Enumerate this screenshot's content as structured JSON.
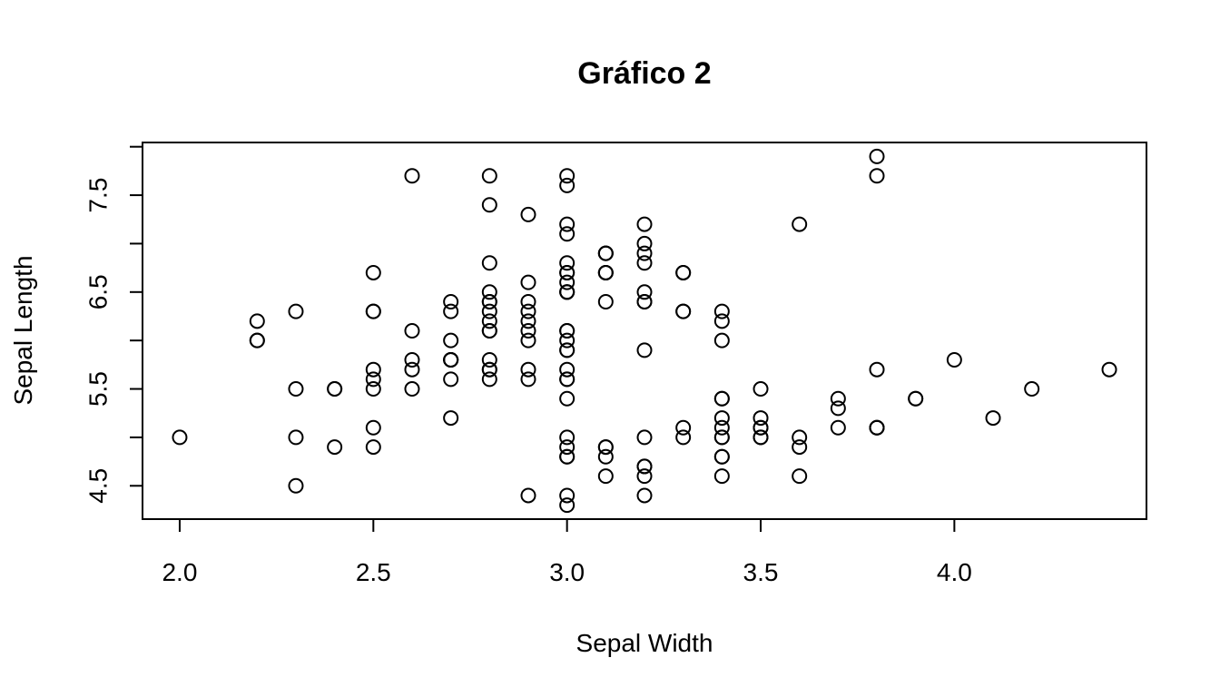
{
  "chart_data": {
    "type": "scatter",
    "title": "Gráfico 2",
    "x_label": "Sepal Width",
    "y_label": "Sepal Length",
    "x": [
      3.5,
      3.0,
      3.2,
      3.1,
      3.6,
      3.9,
      3.4,
      3.4,
      2.9,
      3.1,
      3.7,
      3.4,
      3.0,
      3.0,
      4.0,
      4.4,
      3.9,
      3.5,
      3.8,
      3.8,
      3.4,
      3.7,
      3.6,
      3.3,
      3.4,
      3.0,
      3.4,
      3.5,
      3.4,
      3.2,
      3.1,
      3.4,
      4.1,
      4.2,
      3.1,
      3.2,
      3.5,
      3.6,
      3.0,
      3.4,
      3.5,
      2.3,
      3.2,
      3.5,
      3.8,
      3.0,
      3.8,
      3.2,
      3.7,
      3.3,
      3.2,
      3.2,
      3.1,
      2.3,
      2.8,
      2.8,
      3.3,
      2.4,
      2.9,
      2.7,
      2.0,
      3.0,
      2.2,
      2.9,
      2.9,
      3.1,
      3.0,
      2.7,
      2.2,
      2.5,
      3.2,
      2.8,
      2.5,
      2.8,
      2.9,
      3.0,
      2.8,
      3.0,
      2.9,
      2.6,
      2.4,
      2.4,
      2.7,
      2.7,
      3.0,
      3.4,
      3.1,
      2.3,
      3.0,
      2.5,
      2.6,
      3.0,
      2.6,
      2.3,
      2.7,
      3.0,
      2.9,
      2.9,
      2.5,
      2.8,
      3.3,
      2.7,
      3.0,
      2.9,
      3.0,
      3.0,
      2.5,
      2.9,
      2.5,
      3.6,
      3.2,
      2.7,
      3.0,
      2.5,
      2.8,
      3.2,
      3.0,
      3.8,
      2.6,
      2.2,
      3.2,
      2.8,
      2.8,
      2.7,
      3.3,
      3.2,
      2.8,
      3.0,
      2.8,
      3.0,
      2.8,
      3.8,
      2.8,
      2.8,
      2.6,
      3.0,
      3.4,
      3.1,
      3.0,
      3.1,
      3.1,
      3.1,
      2.7,
      3.2,
      3.3,
      3.0,
      2.5,
      3.0,
      3.4,
      3.0
    ],
    "values": [
      5.1,
      4.9,
      4.7,
      4.6,
      5.0,
      5.4,
      4.6,
      5.0,
      4.4,
      4.9,
      5.4,
      4.8,
      4.8,
      4.3,
      5.8,
      5.7,
      5.4,
      5.1,
      5.7,
      5.1,
      5.4,
      5.1,
      4.6,
      5.1,
      4.8,
      5.0,
      5.0,
      5.2,
      5.2,
      4.7,
      4.8,
      5.4,
      5.2,
      5.5,
      4.9,
      5.0,
      5.5,
      4.9,
      4.4,
      5.1,
      5.0,
      4.5,
      4.4,
      5.0,
      5.1,
      4.8,
      5.1,
      4.6,
      5.3,
      5.0,
      7.0,
      6.4,
      6.9,
      5.5,
      6.5,
      5.7,
      6.3,
      4.9,
      6.6,
      5.2,
      5.0,
      5.9,
      6.0,
      6.1,
      5.6,
      6.7,
      5.6,
      5.8,
      6.2,
      5.6,
      5.9,
      6.1,
      6.3,
      6.1,
      6.4,
      6.6,
      6.8,
      6.7,
      6.0,
      5.7,
      5.5,
      5.5,
      5.8,
      6.0,
      5.4,
      6.0,
      6.7,
      6.3,
      5.6,
      5.5,
      5.5,
      6.1,
      5.8,
      5.0,
      5.6,
      5.7,
      5.7,
      6.2,
      5.1,
      5.7,
      6.3,
      5.8,
      7.1,
      6.3,
      6.5,
      7.6,
      4.9,
      7.3,
      6.7,
      7.2,
      6.5,
      6.4,
      6.8,
      5.7,
      5.8,
      6.4,
      6.5,
      7.7,
      7.7,
      6.0,
      6.9,
      5.6,
      7.7,
      6.3,
      6.7,
      7.2,
      6.2,
      6.1,
      6.4,
      7.2,
      7.4,
      7.9,
      6.4,
      6.3,
      6.1,
      7.7,
      6.3,
      6.4,
      6.0,
      6.9,
      6.7,
      6.9,
      5.8,
      6.8,
      6.7,
      6.7,
      6.3,
      6.5,
      6.2,
      5.9
    ],
    "color": "#000000",
    "xlim": [
      1.904,
      4.496
    ],
    "ylim": [
      4.156,
      8.044
    ],
    "xticks": [
      {
        "value": 2,
        "label": "2.0"
      },
      2.5,
      {
        "value": 3,
        "label": "3.0"
      },
      3.5,
      {
        "value": 4,
        "label": "4.0"
      }
    ],
    "yticks": [
      4.5,
      {
        "value": 5,
        "label": null
      },
      5.5,
      {
        "value": 6,
        "label": null
      },
      6.5,
      {
        "value": 7,
        "label": null
      },
      7.5,
      {
        "value": 8,
        "label": null
      }
    ]
  }
}
